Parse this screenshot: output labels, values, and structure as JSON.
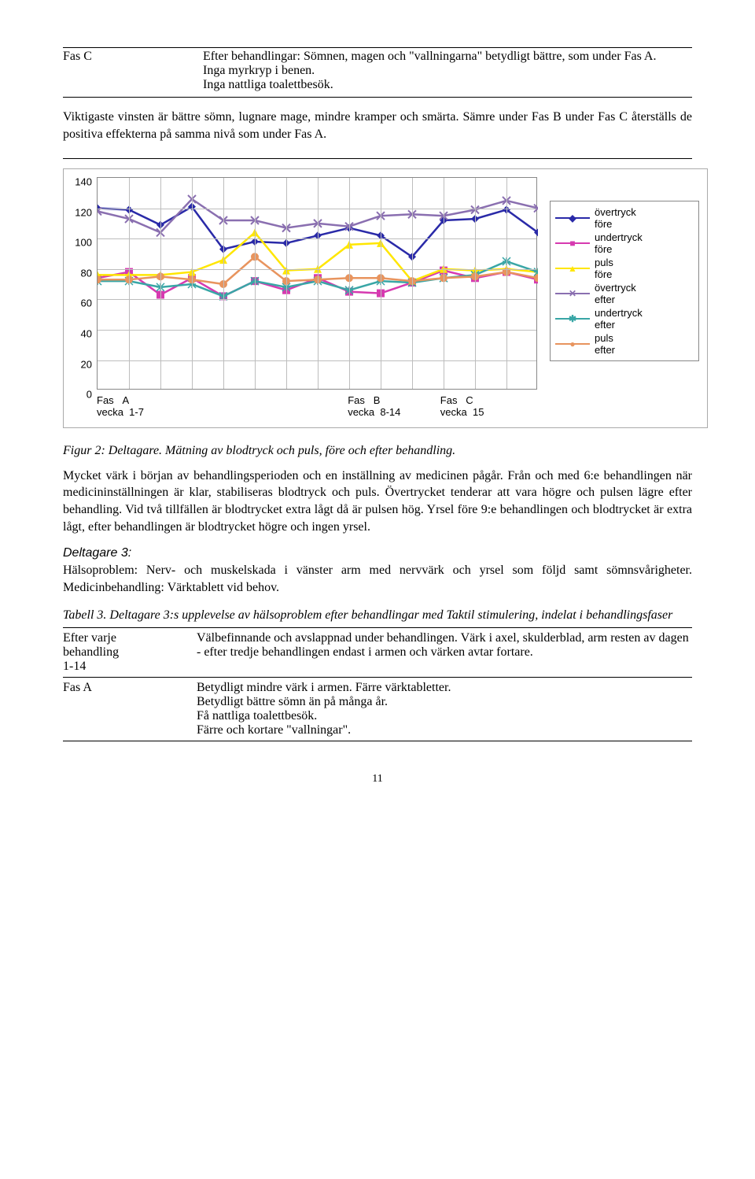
{
  "topTable": {
    "left": "Fas C",
    "right": "Efter behandlingar: Sömnen, magen och \"vallningarna\" betydligt bättre, som under Fas A.\nInga myrkryp i benen.\nInga nattliga toalettbesök.",
    "bottom": "Viktigaste vinsten är bättre sömn, lugnare mage, mindre kramper och smärta. Sämre under Fas B under Fas C återställs de positiva effekterna på samma nivå som under Fas A."
  },
  "chart": {
    "type": "line",
    "series": [
      {
        "name": "övertryck före",
        "color": "#2a2aa8",
        "marker": "diamond",
        "values": [
          120,
          119,
          109,
          121,
          93,
          98,
          97,
          102,
          107,
          102,
          88,
          112,
          113,
          119,
          104
        ]
      },
      {
        "name": "undertryck före",
        "color": "#d63ab0",
        "marker": "square",
        "values": [
          74,
          78,
          63,
          74,
          62,
          72,
          66,
          74,
          65,
          64,
          71,
          79,
          74,
          78,
          73
        ]
      },
      {
        "name": "puls före",
        "color": "#ffe600",
        "marker": "triangle",
        "values": [
          76,
          76,
          76,
          78,
          86,
          104,
          79,
          80,
          96,
          97,
          72,
          80,
          79,
          80,
          78
        ]
      },
      {
        "name": "övertryck efter",
        "color": "#8a6fb0",
        "marker": "x",
        "values": [
          118,
          113,
          104,
          126,
          112,
          112,
          107,
          110,
          108,
          115,
          116,
          115,
          119,
          125,
          120
        ]
      },
      {
        "name": "undertryck efter",
        "color": "#39a6a6",
        "marker": "star",
        "values": [
          72,
          72,
          68,
          70,
          62,
          72,
          68,
          72,
          66,
          72,
          71,
          74,
          76,
          85,
          78
        ]
      },
      {
        "name": "puls efter",
        "color": "#e8945e",
        "marker": "circle",
        "values": [
          73,
          73,
          75,
          73,
          70,
          88,
          72,
          73,
          74,
          74,
          72,
          74,
          75,
          78,
          74
        ]
      }
    ],
    "ylim": [
      0,
      140
    ],
    "ytick_step": 20,
    "x_points": 15,
    "grid_color": "#bdbdbd",
    "background_color": "#ffffff",
    "legend_border": "#888888",
    "x_axis_labels": [
      {
        "top": "Fas",
        "mid": "A",
        "bot": "vecka",
        "bot2": "1-7",
        "pos": 0
      },
      {
        "top": "Fas",
        "mid": "B",
        "bot": "vecka",
        "bot2": "8-14",
        "pos": 0.57
      },
      {
        "top": "Fas",
        "mid": "C",
        "bot": "vecka",
        "bot2": "15",
        "pos": 0.78
      }
    ]
  },
  "figCaption": "Figur 2: Deltagare. Mätning av blodtryck och puls, före och efter behandling.",
  "bodyPara": "Mycket värk i början av behandlingsperioden och en inställning av medicinen pågår. Från och med 6:e behandlingen när medicininställningen är klar, stabiliseras blodtryck och puls. Övertrycket tenderar att vara högre och pulsen lägre efter behandling. Vid två tillfällen är blodtrycket extra lågt då är pulsen hög. Yrsel före 9:e behandlingen och blodtrycket är extra lågt, efter behandlingen är blodtrycket högre och ingen yrsel.",
  "d3": {
    "heading": "Deltagare 3:",
    "text": "Hälsoproblem: Nerv- och muskelskada i vänster arm med nervvärk och yrsel som följd samt sömnsvårigheter. Medicinbehandling: Värktablett vid behov."
  },
  "tabell3Caption": "Tabell 3. Deltagare 3:s upplevelse av hälsoproblem efter behandlingar med Taktil stimulering, indelat i behandlingsfaser",
  "table3": [
    {
      "left": "Efter varje\nbehandling\n1-14",
      "right": "Välbefinnande och avslappnad under behandlingen. Värk i axel, skulderblad, arm resten av dagen - efter tredje behandlingen endast i armen och värken avtar fortare."
    },
    {
      "left": "Fas A",
      "right": "Betydligt mindre värk i armen. Färre värktabletter.\nBetydligt bättre sömn än på många år.\nFå nattliga toalettbesök.\nFärre och kortare \"vallningar\"."
    }
  ],
  "pageNumber": "11"
}
